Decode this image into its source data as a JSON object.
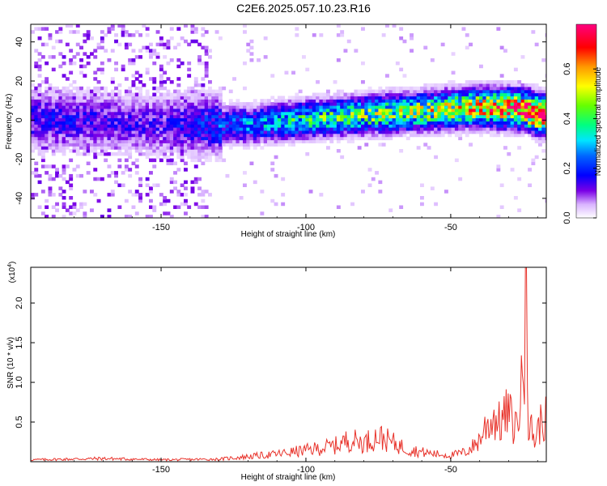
{
  "title": "C2E6.2025.057.10.23.R16",
  "chart_data": [
    {
      "type": "heatmap",
      "xlabel": "Height of straight line (km)",
      "ylabel": "Frequency (Hz)",
      "xlim": [
        -195,
        -17
      ],
      "ylim": [
        -50,
        49
      ],
      "xticks": [
        -150,
        -100,
        -50
      ],
      "xtick_labels": [
        "-150",
        "-100",
        "-50"
      ],
      "yticks": [
        -40,
        -20,
        0,
        20,
        40
      ],
      "ytick_labels": [
        "-40",
        "-20",
        "0",
        "20",
        "40"
      ],
      "colorbar": {
        "label": "Normalized spectral amplitude",
        "range": [
          0.0,
          0.78
        ],
        "ticks": [
          0.0,
          0.2,
          0.4,
          0.6
        ],
        "tick_labels": [
          "0.0",
          "0.2",
          "0.4",
          "0.6"
        ],
        "colormap": "rainbow (white-violet-blue-cyan-green-yellow-red-magenta)"
      },
      "ridge": {
        "description": "narrow band of high amplitude near 0 Hz rising slightly toward the right",
        "x": [
          -195,
          -150,
          -120,
          -100,
          -80,
          -60,
          -40,
          -25,
          -20
        ],
        "center_freq": [
          0,
          -3,
          -3,
          0,
          2,
          4,
          6,
          5,
          2
        ],
        "peak_amplitude": [
          0.15,
          0.12,
          0.25,
          0.35,
          0.4,
          0.45,
          0.55,
          0.7,
          0.75
        ]
      },
      "diffuse_noise_region": {
        "x_from": -195,
        "x_to": -133,
        "freq_from": -50,
        "freq_to": 49
      }
    },
    {
      "type": "line",
      "xlabel": "Height of straight line (km)",
      "ylabel": "SNR (10 * v/v)",
      "y_multiplier_label": "(x10",
      "y_multiplier_exp": "4",
      "y_multiplier_close": ")",
      "xlim": [
        -195,
        -17
      ],
      "ylim": [
        0,
        2.45
      ],
      "xticks": [
        -150,
        -100,
        -50
      ],
      "xtick_labels": [
        "-150",
        "-100",
        "-50"
      ],
      "yticks": [
        0.5,
        1.0,
        1.5,
        2.0
      ],
      "ytick_labels": [
        "0.5",
        "1.0",
        "1.5",
        "2.0"
      ],
      "line_color": "#e8322a",
      "series": [
        {
          "x": [
            -195,
            -170,
            -150,
            -130,
            -120,
            -110,
            -100,
            -90,
            -85,
            -80,
            -75,
            -70,
            -65,
            -60,
            -55,
            -50,
            -45,
            -42,
            -40,
            -38,
            -35,
            -33,
            -30,
            -28,
            -26,
            -25,
            -24,
            -23,
            -22,
            -21,
            -20,
            -19,
            -18,
            -17
          ],
          "y": [
            0.03,
            0.05,
            0.03,
            0.04,
            0.08,
            0.12,
            0.18,
            0.25,
            0.35,
            0.3,
            0.4,
            0.3,
            0.2,
            0.15,
            0.12,
            0.1,
            0.15,
            0.25,
            0.35,
            0.55,
            0.7,
            0.6,
            0.8,
            0.5,
            0.9,
            1.4,
            2.45,
            0.3,
            0.6,
            0.3,
            0.5,
            0.6,
            0.7,
            0.65
          ]
        }
      ]
    }
  ]
}
